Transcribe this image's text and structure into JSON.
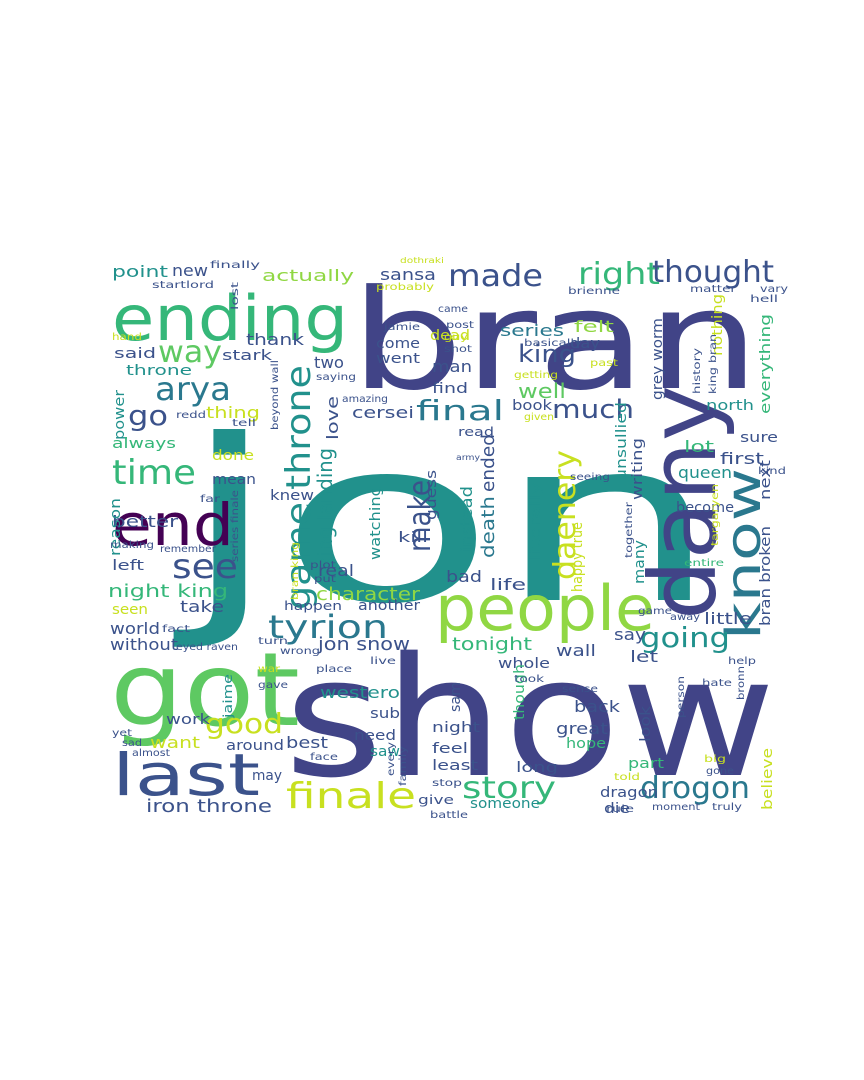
{
  "chart_data": {
    "type": "wordcloud",
    "title": "",
    "palette": {
      "dark_purple": "#440154",
      "indigo": "#3b528b",
      "slate": "#414487",
      "teal": "#21918c",
      "sea": "#2a788e",
      "green": "#35b779",
      "lime": "#5ec962",
      "yellow_green": "#90d743",
      "yellow": "#c8e020",
      "bright_yellow": "#fde725"
    },
    "words": [
      {
        "text": "jon",
        "weight": 100,
        "color": "#21918c"
      },
      {
        "text": "show",
        "weight": 92,
        "color": "#414487"
      },
      {
        "text": "bran",
        "weight": 80,
        "color": "#414487"
      },
      {
        "text": "got",
        "weight": 52,
        "color": "#5ec962"
      },
      {
        "text": "dany",
        "weight": 45,
        "color": "#414487"
      },
      {
        "text": "ending",
        "weight": 42,
        "color": "#35b779"
      },
      {
        "text": "people",
        "weight": 38,
        "color": "#90d743"
      },
      {
        "text": "end",
        "weight": 36,
        "color": "#440154"
      },
      {
        "text": "last",
        "weight": 33,
        "color": "#3b528b"
      },
      {
        "text": "know",
        "weight": 31,
        "color": "#2a788e"
      },
      {
        "text": "game throne",
        "weight": 26,
        "color": "#21918c"
      },
      {
        "text": "finale",
        "weight": 22,
        "color": "#c8e020"
      },
      {
        "text": "tyrion",
        "weight": 21,
        "color": "#2a788e"
      },
      {
        "text": "time",
        "weight": 20,
        "color": "#35b779"
      },
      {
        "text": "daenery",
        "weight": 20,
        "color": "#c8e020"
      },
      {
        "text": "made",
        "weight": 18,
        "color": "#3b528b"
      },
      {
        "text": "right",
        "weight": 18,
        "color": "#35b779"
      },
      {
        "text": "drogon",
        "weight": 18,
        "color": "#2a788e"
      },
      {
        "text": "arya",
        "weight": 17,
        "color": "#2a788e"
      },
      {
        "text": "see",
        "weight": 17,
        "color": "#3b528b"
      },
      {
        "text": "thought",
        "weight": 17,
        "color": "#3b528b"
      },
      {
        "text": "final",
        "weight": 16,
        "color": "#2a788e"
      },
      {
        "text": "way",
        "weight": 16,
        "color": "#5ec962"
      },
      {
        "text": "story",
        "weight": 16,
        "color": "#35b779"
      },
      {
        "text": "make",
        "weight": 15,
        "color": "#3b528b"
      },
      {
        "text": "much",
        "weight": 15,
        "color": "#3b528b"
      },
      {
        "text": "going",
        "weight": 14,
        "color": "#21918c"
      },
      {
        "text": "good",
        "weight": 14,
        "color": "#c8e020"
      },
      {
        "text": "go",
        "weight": 14,
        "color": "#3b528b"
      },
      {
        "text": "king",
        "weight": 13,
        "color": "#3b528b"
      },
      {
        "text": "king landing",
        "weight": 12,
        "color": "#21918c"
      },
      {
        "text": "night king",
        "weight": 11,
        "color": "#35b779"
      },
      {
        "text": "character",
        "weight": 11,
        "color": "#90d743"
      },
      {
        "text": "iron throne",
        "weight": 11,
        "color": "#3b528b"
      },
      {
        "text": "jon snow",
        "weight": 10,
        "color": "#3b528b"
      },
      {
        "text": "well",
        "weight": 10,
        "color": "#5ec962"
      },
      {
        "text": "death",
        "weight": 10,
        "color": "#2a788e"
      },
      {
        "text": "ended",
        "weight": 10,
        "color": "#3b528b"
      },
      {
        "text": "point",
        "weight": 9,
        "color": "#21918c"
      },
      {
        "text": "new",
        "weight": 9,
        "color": "#3b528b"
      },
      {
        "text": "actually",
        "weight": 9,
        "color": "#90d743"
      },
      {
        "text": "sansa",
        "weight": 9,
        "color": "#3b528b"
      },
      {
        "text": "series",
        "weight": 9,
        "color": "#2a788e"
      },
      {
        "text": "felt",
        "weight": 9,
        "color": "#90d743"
      },
      {
        "text": "thank",
        "weight": 9,
        "color": "#3b528b"
      },
      {
        "text": "said",
        "weight": 9,
        "color": "#3b528b"
      },
      {
        "text": "throne",
        "weight": 9,
        "color": "#21918c"
      },
      {
        "text": "two",
        "weight": 9,
        "color": "#3b528b"
      },
      {
        "text": "come",
        "weight": 9,
        "color": "#3b528b"
      },
      {
        "text": "went",
        "weight": 9,
        "color": "#3b528b"
      },
      {
        "text": "day",
        "weight": 9,
        "color": "#3b528b"
      },
      {
        "text": "man",
        "weight": 9,
        "color": "#3b528b"
      },
      {
        "text": "stark",
        "weight": 9,
        "color": "#3b528b"
      },
      {
        "text": "cersei",
        "weight": 9,
        "color": "#3b528b"
      },
      {
        "text": "love",
        "weight": 9,
        "color": "#3b528b"
      },
      {
        "text": "find",
        "weight": 9,
        "color": "#3b528b"
      },
      {
        "text": "thing",
        "weight": 9,
        "color": "#c8e020"
      },
      {
        "text": "power",
        "weight": 8,
        "color": "#21918c"
      },
      {
        "text": "always",
        "weight": 9,
        "color": "#35b779"
      },
      {
        "text": "done",
        "weight": 8,
        "color": "#c8e020"
      },
      {
        "text": "mean",
        "weight": 9,
        "color": "#3b528b"
      },
      {
        "text": "better",
        "weight": 9,
        "color": "#3b528b"
      },
      {
        "text": "knew",
        "weight": 9,
        "color": "#3b528b"
      },
      {
        "text": "reason",
        "weight": 8,
        "color": "#21918c"
      },
      {
        "text": "left",
        "weight": 9,
        "color": "#3b528b"
      },
      {
        "text": "real",
        "weight": 9,
        "color": "#3b528b"
      },
      {
        "text": "take",
        "weight": 9,
        "color": "#3b528b"
      },
      {
        "text": "seen",
        "weight": 8,
        "color": "#c8e020"
      },
      {
        "text": "world",
        "weight": 9,
        "color": "#3b528b"
      },
      {
        "text": "without",
        "weight": 9,
        "color": "#3b528b"
      },
      {
        "text": "another",
        "weight": 9,
        "color": "#3b528b"
      },
      {
        "text": "happen",
        "weight": 8,
        "color": "#3b528b"
      },
      {
        "text": "tonight",
        "weight": 9,
        "color": "#35b779"
      },
      {
        "text": "life",
        "weight": 9,
        "color": "#3b528b"
      },
      {
        "text": "bad",
        "weight": 9,
        "color": "#3b528b"
      },
      {
        "text": "instead",
        "weight": 9,
        "color": "#21918c"
      },
      {
        "text": "guess",
        "weight": 8,
        "color": "#3b528b"
      },
      {
        "text": "kill",
        "weight": 9,
        "color": "#3b528b"
      },
      {
        "text": "watching",
        "weight": 9,
        "color": "#21918c"
      },
      {
        "text": "literally",
        "weight": 9,
        "color": "#21918c"
      },
      {
        "text": "happy true",
        "weight": 8,
        "color": "#c8e020"
      },
      {
        "text": "unsullied",
        "weight": 9,
        "color": "#21918c"
      },
      {
        "text": "writing",
        "weight": 9,
        "color": "#3b528b"
      },
      {
        "text": "grey worm",
        "weight": 8,
        "color": "#3b528b"
      },
      {
        "text": "nothing",
        "weight": 8,
        "color": "#c8e020"
      },
      {
        "text": "everything",
        "weight": 9,
        "color": "#35b779"
      },
      {
        "text": "north",
        "weight": 9,
        "color": "#21918c"
      },
      {
        "text": "sure",
        "weight": 9,
        "color": "#3b528b"
      },
      {
        "text": "lot",
        "weight": 9,
        "color": "#35b779"
      },
      {
        "text": "queen",
        "weight": 9,
        "color": "#21918c"
      },
      {
        "text": "first",
        "weight": 9,
        "color": "#3b528b"
      },
      {
        "text": "become",
        "weight": 9,
        "color": "#3b528b"
      },
      {
        "text": "next",
        "weight": 8,
        "color": "#3b528b"
      },
      {
        "text": "bran broken",
        "weight": 8,
        "color": "#3b528b"
      },
      {
        "text": "little",
        "weight": 9,
        "color": "#3b528b"
      },
      {
        "text": "many",
        "weight": 9,
        "color": "#21918c"
      },
      {
        "text": "say",
        "weight": 9,
        "color": "#3b528b"
      },
      {
        "text": "let",
        "weight": 9,
        "color": "#3b528b"
      },
      {
        "text": "wall",
        "weight": 9,
        "color": "#3b528b"
      },
      {
        "text": "whole",
        "weight": 9,
        "color": "#3b528b"
      },
      {
        "text": "westero",
        "weight": 9,
        "color": "#21918c"
      },
      {
        "text": "sub",
        "weight": 9,
        "color": "#3b528b"
      },
      {
        "text": "need",
        "weight": 9,
        "color": "#3b528b"
      },
      {
        "text": "saw",
        "weight": 9,
        "color": "#21918c"
      },
      {
        "text": "sam",
        "weight": 8,
        "color": "#3b528b"
      },
      {
        "text": "night",
        "weight": 9,
        "color": "#3b528b"
      },
      {
        "text": "feel",
        "weight": 9,
        "color": "#3b528b"
      },
      {
        "text": "least",
        "weight": 9,
        "color": "#3b528b"
      },
      {
        "text": "long",
        "weight": 9,
        "color": "#3b528b"
      },
      {
        "text": "though",
        "weight": 9,
        "color": "#35b779"
      },
      {
        "text": "back",
        "weight": 9,
        "color": "#3b528b"
      },
      {
        "text": "great",
        "weight": 9,
        "color": "#3b528b"
      },
      {
        "text": "hope",
        "weight": 9,
        "color": "#35b779"
      },
      {
        "text": "look",
        "weight": 9,
        "color": "#3b528b"
      },
      {
        "text": "part",
        "weight": 9,
        "color": "#35b779"
      },
      {
        "text": "dragon",
        "weight": 9,
        "color": "#3b528b"
      },
      {
        "text": "die",
        "weight": 9,
        "color": "#3b528b"
      },
      {
        "text": "someone",
        "weight": 8,
        "color": "#21918c"
      },
      {
        "text": "give",
        "weight": 8,
        "color": "#3b528b"
      },
      {
        "text": "best",
        "weight": 9,
        "color": "#3b528b"
      },
      {
        "text": "around",
        "weight": 8,
        "color": "#3b528b"
      },
      {
        "text": "want",
        "weight": 9,
        "color": "#c8e020"
      },
      {
        "text": "work",
        "weight": 9,
        "color": "#3b528b"
      },
      {
        "text": "may",
        "weight": 8,
        "color": "#3b528b"
      },
      {
        "text": "jaime",
        "weight": 8,
        "color": "#21918c"
      },
      {
        "text": "book",
        "weight": 8,
        "color": "#3b528b"
      },
      {
        "text": "read",
        "weight": 8,
        "color": "#3b528b"
      },
      {
        "text": "dead",
        "weight": 8,
        "color": "#c8e020"
      },
      {
        "text": "believe",
        "weight": 8,
        "color": "#c8e020"
      },
      {
        "text": "finally",
        "weight": 6,
        "color": "#3b528b"
      },
      {
        "text": "startlord",
        "weight": 6,
        "color": "#3b528b"
      },
      {
        "text": "lost",
        "weight": 6,
        "color": "#3b528b"
      },
      {
        "text": "probably",
        "weight": 6,
        "color": "#c8e020"
      },
      {
        "text": "brienne",
        "weight": 6,
        "color": "#3b528b"
      },
      {
        "text": "matter",
        "weight": 6,
        "color": "#3b528b"
      },
      {
        "text": "hell",
        "weight": 6,
        "color": "#3b528b"
      },
      {
        "text": "came",
        "weight": 6,
        "color": "#3b528b"
      },
      {
        "text": "post",
        "weight": 6,
        "color": "#3b528b"
      },
      {
        "text": "guy",
        "weight": 6,
        "color": "#c8e020"
      },
      {
        "text": "jamie",
        "weight": 6,
        "color": "#3b528b"
      },
      {
        "text": "basically",
        "weight": 6,
        "color": "#3b528b"
      },
      {
        "text": "shot",
        "weight": 6,
        "color": "#3b528b"
      },
      {
        "text": "getting",
        "weight": 6,
        "color": "#c8e020"
      },
      {
        "text": "past",
        "weight": 6,
        "color": "#c8e020"
      },
      {
        "text": "history",
        "weight": 6,
        "color": "#3b528b"
      },
      {
        "text": "king bran",
        "weight": 6,
        "color": "#3b528b"
      },
      {
        "text": "hand",
        "weight": 6,
        "color": "#c8e020"
      },
      {
        "text": "saying",
        "weight": 6,
        "color": "#3b528b"
      },
      {
        "text": "amazing",
        "weight": 6,
        "color": "#3b528b"
      },
      {
        "text": "redd",
        "weight": 6,
        "color": "#3b528b"
      },
      {
        "text": "tell",
        "weight": 6,
        "color": "#3b528b"
      },
      {
        "text": "beyond wall",
        "weight": 6,
        "color": "#3b528b"
      },
      {
        "text": "army",
        "weight": 5,
        "color": "#3b528b"
      },
      {
        "text": "given",
        "weight": 6,
        "color": "#c8e020"
      },
      {
        "text": "far",
        "weight": 6,
        "color": "#3b528b"
      },
      {
        "text": "series finale",
        "weight": 6,
        "color": "#3b528b"
      },
      {
        "text": "bran king",
        "weight": 6,
        "color": "#c8e020"
      },
      {
        "text": "seeing",
        "weight": 6,
        "color": "#3b528b"
      },
      {
        "text": "together",
        "weight": 6,
        "color": "#3b528b"
      },
      {
        "text": "targaryen",
        "weight": 6,
        "color": "#c8e020"
      },
      {
        "text": "kind",
        "weight": 6,
        "color": "#3b528b"
      },
      {
        "text": "entire",
        "weight": 6,
        "color": "#35b779"
      },
      {
        "text": "making",
        "weight": 6,
        "color": "#3b528b"
      },
      {
        "text": "remember",
        "weight": 6,
        "color": "#3b528b"
      },
      {
        "text": "plot",
        "weight": 6,
        "color": "#3b528b"
      },
      {
        "text": "put",
        "weight": 6,
        "color": "#3b528b"
      },
      {
        "text": "fact",
        "weight": 6,
        "color": "#3b528b"
      },
      {
        "text": "eyed raven",
        "weight": 6,
        "color": "#3b528b"
      },
      {
        "text": "turn",
        "weight": 6,
        "color": "#3b528b"
      },
      {
        "text": "wrong",
        "weight": 6,
        "color": "#3b528b"
      },
      {
        "text": "place",
        "weight": 6,
        "color": "#3b528b"
      },
      {
        "text": "live",
        "weight": 6,
        "color": "#3b528b"
      },
      {
        "text": "took",
        "weight": 6,
        "color": "#3b528b"
      },
      {
        "text": "game",
        "weight": 6,
        "color": "#3b528b"
      },
      {
        "text": "away",
        "weight": 6,
        "color": "#3b528b"
      },
      {
        "text": "war",
        "weight": 6,
        "color": "#c8e020"
      },
      {
        "text": "gave",
        "weight": 6,
        "color": "#3b528b"
      },
      {
        "text": "person",
        "weight": 6,
        "color": "#3b528b"
      },
      {
        "text": "hate",
        "weight": 6,
        "color": "#3b528b"
      },
      {
        "text": "help",
        "weight": 6,
        "color": "#3b528b"
      },
      {
        "text": "bronn",
        "weight": 6,
        "color": "#3b528b"
      },
      {
        "text": "sense",
        "weight": 6,
        "color": "#3b528b"
      },
      {
        "text": "yet",
        "weight": 6,
        "color": "#3b528b"
      },
      {
        "text": "sad",
        "weight": 6,
        "color": "#3b528b"
      },
      {
        "text": "almost",
        "weight": 6,
        "color": "#3b528b"
      },
      {
        "text": "face",
        "weight": 6,
        "color": "#3b528b"
      },
      {
        "text": "every",
        "weight": 6,
        "color": "#3b528b"
      },
      {
        "text": "family",
        "weight": 6,
        "color": "#3b528b"
      },
      {
        "text": "stop",
        "weight": 6,
        "color": "#3b528b"
      },
      {
        "text": "told",
        "weight": 6,
        "color": "#c8e020"
      },
      {
        "text": "big",
        "weight": 6,
        "color": "#c8e020"
      },
      {
        "text": "gone",
        "weight": 6,
        "color": "#3b528b"
      },
      {
        "text": "battle",
        "weight": 6,
        "color": "#3b528b"
      },
      {
        "text": "rule",
        "weight": 6,
        "color": "#3b528b"
      },
      {
        "text": "moment",
        "weight": 6,
        "color": "#3b528b"
      },
      {
        "text": "truly",
        "weight": 6,
        "color": "#3b528b"
      },
      {
        "text": "dothraki",
        "weight": 5,
        "color": "#c8e020"
      },
      {
        "text": "vary",
        "weight": 6,
        "color": "#3b528b"
      }
    ]
  }
}
